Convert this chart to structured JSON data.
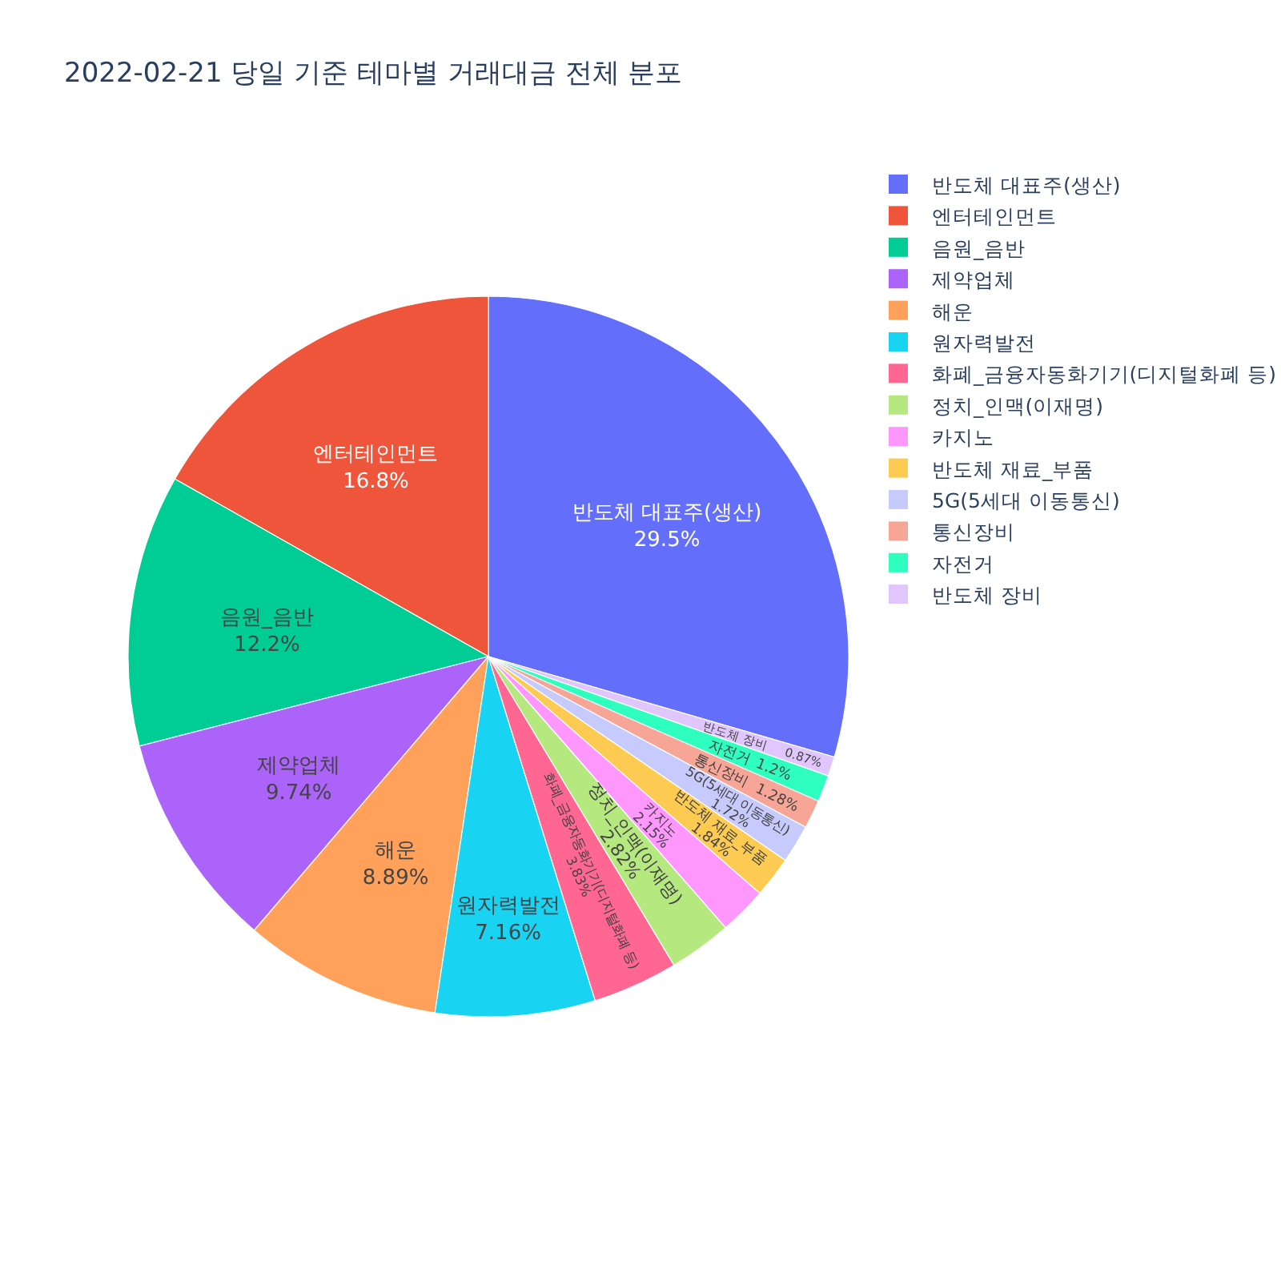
{
  "chart_data": {
    "type": "pie",
    "title": "2022-02-21 당일 기준 테마별 거래대금 전체 분포",
    "categories": [
      "반도체 대표주(생산)",
      "엔터테인먼트",
      "음원_음반",
      "제약업체",
      "해운",
      "원자력발전",
      "화폐_금융자동화기기(디지털화폐 등)",
      "정치_인맥(이재명)",
      "카지노",
      "반도체 재료_부품",
      "5G(5세대 이동통신)",
      "통신장비",
      "자전거",
      "반도체 장비"
    ],
    "values": [
      29.5,
      16.8,
      12.2,
      9.74,
      8.89,
      7.16,
      3.83,
      2.82,
      2.15,
      1.84,
      1.72,
      1.28,
      1.2,
      0.87
    ],
    "colors": [
      "#636efa",
      "#ef553b",
      "#00cc96",
      "#ab63fa",
      "#ffa15a",
      "#19d3f3",
      "#ff6692",
      "#b6e880",
      "#ff97ff",
      "#fecb52",
      "#c6cafd",
      "#f6a597",
      "#2effbe",
      "#e0c6fc"
    ],
    "value_labels": [
      "29.5%",
      "16.8%",
      "12.2%",
      "9.74%",
      "8.89%",
      "7.16%",
      "3.83%",
      "2.82%",
      "2.15%",
      "1.84%",
      "1.72%",
      "1.28%",
      "1.2%",
      "0.87%"
    ],
    "legend": "top right"
  }
}
